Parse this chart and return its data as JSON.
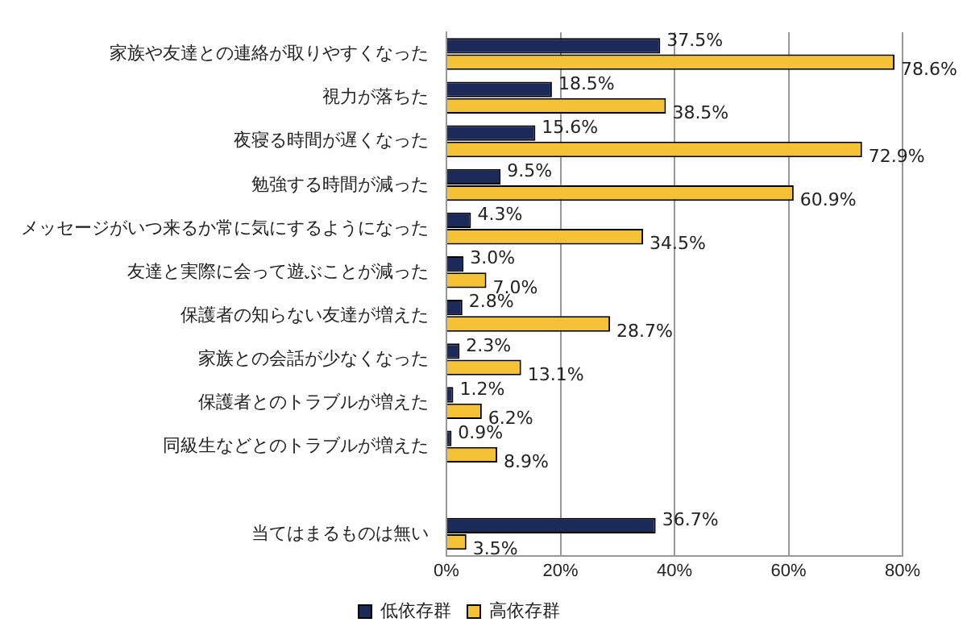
{
  "chart_data": {
    "type": "bar",
    "orientation": "horizontal",
    "categories": [
      "家族や友達との連絡が取りやすくなった",
      "視力が落ちた",
      "夜寝る時間が遅くなった",
      "勉強する時間が減った",
      "メッセージがいつ来るか常に気にするようになった",
      "友達と実際に会って遊ぶことが減った",
      "保護者の知らない友達が増えた",
      "家族との会話が少なくなった",
      "保護者とのトラブルが増えた",
      "同級生などとのトラブルが増えた",
      null,
      "当てはまるものは無い"
    ],
    "series": [
      {
        "name": "低依存群",
        "color": "#1c2a5a",
        "values": [
          37.5,
          18.5,
          15.6,
          9.5,
          4.3,
          3.0,
          2.8,
          2.3,
          1.2,
          0.9,
          null,
          36.7
        ],
        "value_labels": [
          "37.5%",
          "18.5%",
          "15.6%",
          "9.5%",
          "4.3%",
          "3.0%",
          "2.8%",
          "2.3%",
          "1.2%",
          "0.9%",
          null,
          "36.7%"
        ]
      },
      {
        "name": "高依存群",
        "color": "#f5c236",
        "values": [
          78.6,
          38.5,
          72.9,
          60.9,
          34.5,
          7.0,
          28.7,
          13.1,
          6.2,
          8.9,
          null,
          3.5
        ],
        "value_labels": [
          "78.6%",
          "38.5%",
          "72.9%",
          "60.9%",
          "34.5%",
          "7.0%",
          "28.7%",
          "13.1%",
          "6.2%",
          "8.9%",
          null,
          "3.5%"
        ]
      }
    ],
    "xlim": [
      0,
      80
    ],
    "xticks": [
      {
        "value": 0,
        "label": "0%"
      },
      {
        "value": 20,
        "label": "20%"
      },
      {
        "value": 40,
        "label": "40%"
      },
      {
        "value": 60,
        "label": "60%"
      },
      {
        "value": 80,
        "label": "80%"
      }
    ],
    "grid": "x",
    "legend": "bottom"
  }
}
